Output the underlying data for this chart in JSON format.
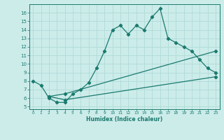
{
  "line1_x": [
    0,
    1,
    2,
    3,
    4,
    5,
    6,
    7,
    8,
    9,
    10,
    11,
    12,
    13,
    14,
    15,
    16,
    17,
    18,
    19,
    20,
    21,
    22,
    23
  ],
  "line1_y": [
    8.0,
    7.5,
    6.0,
    5.5,
    5.5,
    6.5,
    7.0,
    7.8,
    9.5,
    11.5,
    14.0,
    14.5,
    13.5,
    14.5,
    14.0,
    15.5,
    16.5,
    13.0,
    12.5,
    12.0,
    11.5,
    10.5,
    9.5,
    9.0
  ],
  "line2_x": [
    2,
    4,
    23
  ],
  "line2_y": [
    6.2,
    6.5,
    11.5
  ],
  "line3_x": [
    2,
    4,
    23
  ],
  "line3_y": [
    6.2,
    5.8,
    8.5
  ],
  "line_color": "#1a7a6e",
  "bg_color": "#ccecea",
  "grid_color": "#b0dbd8",
  "xlabel": "Humidex (Indice chaleur)",
  "xlim": [
    -0.5,
    23.5
  ],
  "ylim": [
    4.7,
    17.0
  ],
  "yticks": [
    5,
    6,
    7,
    8,
    9,
    10,
    11,
    12,
    13,
    14,
    15,
    16
  ],
  "xticks": [
    0,
    1,
    2,
    3,
    4,
    5,
    6,
    7,
    8,
    9,
    10,
    11,
    12,
    13,
    14,
    15,
    16,
    17,
    18,
    19,
    20,
    21,
    22,
    23
  ]
}
